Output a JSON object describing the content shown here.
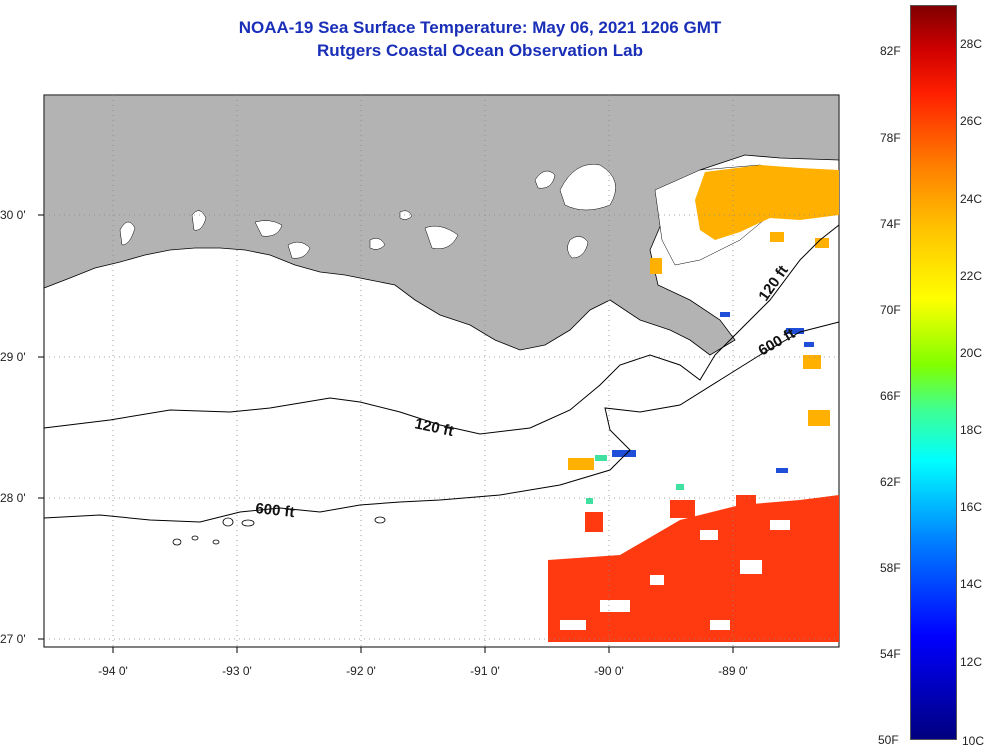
{
  "title_line1": "NOAA-19 Sea Surface Temperature:  May 06, 2021 1206 GMT",
  "title_line2": "Rutgers Coastal Ocean Observation Lab",
  "lat_labels": [
    "30 0'",
    "29 0'",
    "28 0'",
    "27 0'"
  ],
  "lon_labels": [
    "-94 0'",
    "-93 0'",
    "-92 0'",
    "-91 0'",
    "-90 0'",
    "-89 0'"
  ],
  "contours": {
    "shallow": "120 ft",
    "deep": "600 ft",
    "shelf_edge": "120 ft",
    "delta_deep": "600 ft"
  },
  "colorbar": {
    "fahrenheit": [
      "82F",
      "78F",
      "74F",
      "70F",
      "66F",
      "62F",
      "58F",
      "54F",
      "50F"
    ],
    "celsius": [
      "28C",
      "26C",
      "24C",
      "22C",
      "20C",
      "18C",
      "16C",
      "14C",
      "12C",
      "10C"
    ],
    "colors": [
      "#00007f",
      "#0000ff",
      "#0080ff",
      "#00ffff",
      "#80ff00",
      "#ffff00",
      "#ffc000",
      "#ff8000",
      "#ff2000",
      "#800000"
    ]
  },
  "map_colors": {
    "land": "#b3b3b3",
    "water_nodata": "#ffffff",
    "warm_sst": "#ff3a10",
    "mid_sst": "#ffb000",
    "cool_sst": "#1f4fd8"
  }
}
